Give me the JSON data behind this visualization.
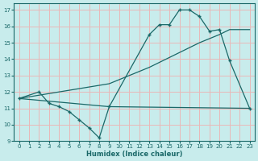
{
  "xlabel": "Humidex (Indice chaleur)",
  "background_color": "#c8ecec",
  "grid_color": "#e8b8b8",
  "line_color": "#1a6868",
  "xlim": [
    -0.5,
    23.5
  ],
  "ylim": [
    9,
    17.4
  ],
  "xticks": [
    0,
    1,
    2,
    3,
    4,
    5,
    6,
    7,
    8,
    9,
    10,
    11,
    12,
    13,
    14,
    15,
    16,
    17,
    18,
    19,
    20,
    21,
    22,
    23
  ],
  "yticks": [
    9,
    10,
    11,
    12,
    13,
    14,
    15,
    16,
    17
  ],
  "curve1_x": [
    0,
    2,
    3,
    4,
    5,
    6,
    7,
    8,
    9,
    13,
    14,
    15,
    16,
    17,
    18,
    19,
    20,
    21,
    23
  ],
  "curve1_y": [
    11.6,
    12.0,
    11.3,
    11.1,
    10.8,
    10.3,
    9.8,
    9.2,
    11.1,
    15.5,
    16.1,
    16.1,
    17.0,
    17.0,
    16.6,
    15.7,
    15.8,
    13.9,
    11.0
  ],
  "curve2_x": [
    0,
    9,
    23
  ],
  "curve2_y": [
    11.6,
    11.1,
    11.0
  ],
  "curve3_x": [
    0,
    9,
    13,
    18,
    20,
    21,
    23
  ],
  "curve3_y": [
    11.6,
    12.5,
    13.5,
    15.0,
    15.5,
    15.8,
    15.8
  ]
}
